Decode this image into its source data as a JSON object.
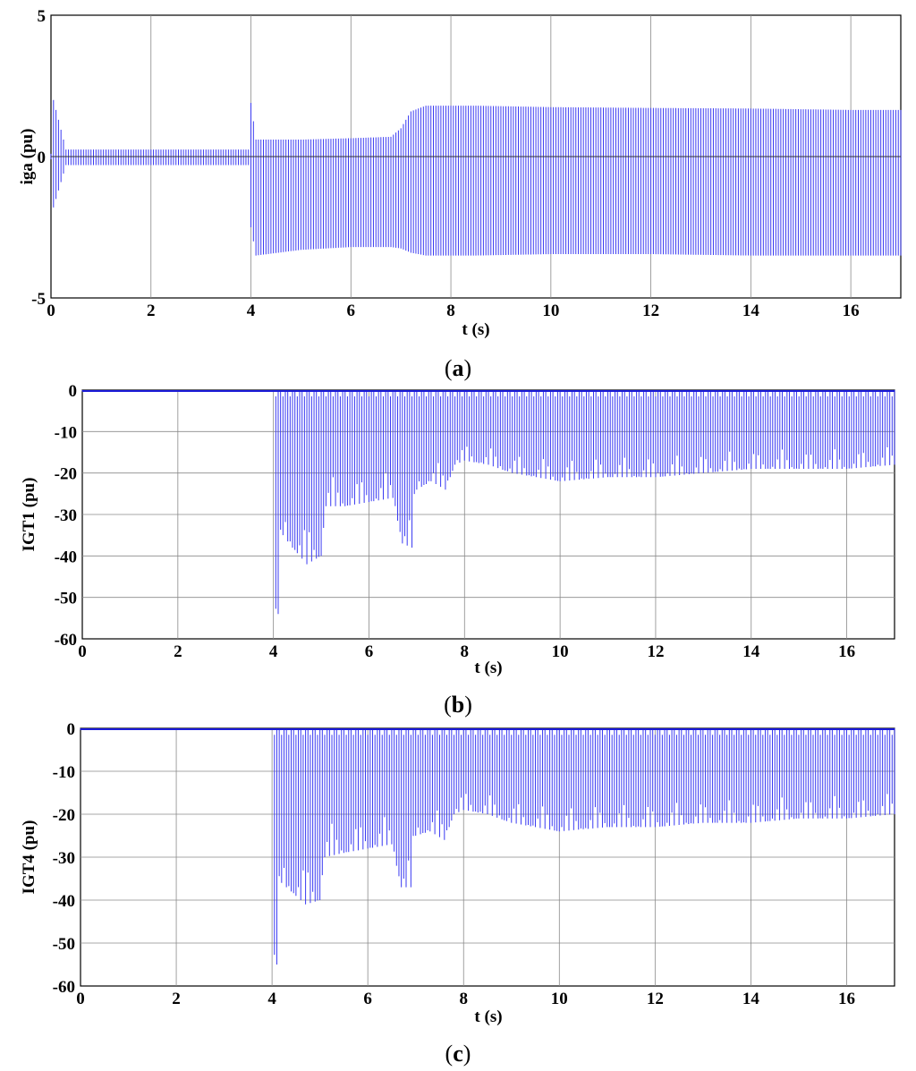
{
  "chart_data": [
    {
      "type": "line",
      "panel": "a",
      "caption": "(a)",
      "caption_letter": "a",
      "xlabel": "t (s)",
      "ylabel": "iga (pu)",
      "xlim": [
        0,
        17
      ],
      "ylim": [
        -5,
        5
      ],
      "xticks": [
        0,
        2,
        4,
        6,
        8,
        10,
        12,
        14,
        16
      ],
      "yticks": [
        -5,
        0,
        5
      ],
      "grid": "vertical",
      "zero_line": true,
      "color": "#3a3af2",
      "series": [
        {
          "kind": "oscillation_envelope",
          "t": [
            0,
            0.05,
            0.3,
            2,
            3.98,
            4.0,
            4.1,
            5,
            6,
            6.8,
            7.0,
            7.2,
            7.5,
            8.5,
            10,
            12,
            14,
            16,
            17
          ],
          "upper": [
            0.1,
            2.0,
            0.25,
            0.25,
            0.25,
            1.9,
            0.6,
            0.6,
            0.65,
            0.7,
            1.0,
            1.6,
            1.8,
            1.8,
            1.75,
            1.72,
            1.7,
            1.65,
            1.65
          ],
          "lower": [
            -0.1,
            -1.8,
            -0.3,
            -0.3,
            -0.3,
            -2.5,
            -3.5,
            -3.3,
            -3.2,
            -3.2,
            -3.25,
            -3.4,
            -3.5,
            -3.5,
            -3.45,
            -3.45,
            -3.5,
            -3.5,
            -3.5
          ]
        }
      ]
    },
    {
      "type": "line",
      "panel": "b",
      "caption": "(b)",
      "caption_letter": "b",
      "xlabel": "t (s)",
      "ylabel": "IGT1 (pu)",
      "xlim": [
        0,
        17
      ],
      "ylim": [
        -60,
        0
      ],
      "xticks": [
        0,
        2,
        4,
        6,
        8,
        10,
        12,
        14,
        16
      ],
      "yticks": [
        0,
        -10,
        -20,
        -30,
        -40,
        -50,
        -60
      ],
      "grid": "both",
      "color": "#3a3af2",
      "series": [
        {
          "kind": "pulse_envelope",
          "t": [
            0,
            4.0,
            4.05,
            4.1,
            4.2,
            4.4,
            4.7,
            5.0,
            5.1,
            5.5,
            6.0,
            6.5,
            6.7,
            6.9,
            7.0,
            7.3,
            7.6,
            7.8,
            8.0,
            8.5,
            9,
            10,
            11,
            12,
            13,
            14,
            15,
            16,
            17
          ],
          "upper": [
            0,
            0,
            0,
            0,
            0,
            0,
            0,
            0,
            0,
            0,
            0,
            0,
            0,
            0,
            0,
            0,
            0,
            0,
            0,
            0,
            0,
            0,
            0,
            0,
            0,
            0,
            0,
            0,
            0
          ],
          "lower": [
            0,
            0,
            -60,
            -54,
            -35,
            -38,
            -42,
            -40,
            -28,
            -28,
            -27,
            -26,
            -37,
            -38,
            -24,
            -22,
            -24,
            -18,
            -17,
            -18,
            -20,
            -22,
            -21,
            -21,
            -20,
            -19,
            -19,
            -19,
            -18
          ]
        }
      ]
    },
    {
      "type": "line",
      "panel": "c",
      "caption": "(c)",
      "caption_letter": "c",
      "xlabel": "t (s)",
      "ylabel": "IGT4 (pu)",
      "xlim": [
        0,
        17
      ],
      "ylim": [
        -60,
        0
      ],
      "xticks": [
        0,
        2,
        4,
        6,
        8,
        10,
        12,
        14,
        16
      ],
      "yticks": [
        0,
        -10,
        -20,
        -30,
        -40,
        -50,
        -60
      ],
      "grid": "both",
      "color": "#3a3af2",
      "series": [
        {
          "kind": "pulse_envelope",
          "t": [
            0,
            4.0,
            4.05,
            4.1,
            4.2,
            4.4,
            4.7,
            5.0,
            5.1,
            5.5,
            6.0,
            6.5,
            6.7,
            6.9,
            7.0,
            7.3,
            7.6,
            7.8,
            8.0,
            8.5,
            9,
            10,
            11,
            12,
            13,
            14,
            15,
            16,
            17
          ],
          "upper": [
            0,
            0,
            0,
            0,
            0,
            0,
            0,
            0,
            0,
            0,
            0,
            0,
            0,
            0,
            0,
            0,
            0,
            0,
            0,
            0,
            0,
            0,
            0,
            0,
            0,
            0,
            0,
            0,
            0
          ],
          "lower": [
            0,
            0,
            -60,
            -55,
            -36,
            -38,
            -41,
            -40,
            -30,
            -29,
            -28,
            -27,
            -37,
            -37,
            -25,
            -24,
            -26,
            -20,
            -19,
            -20,
            -22,
            -24,
            -23,
            -23,
            -22,
            -22,
            -21,
            -21,
            -20
          ]
        }
      ]
    }
  ]
}
